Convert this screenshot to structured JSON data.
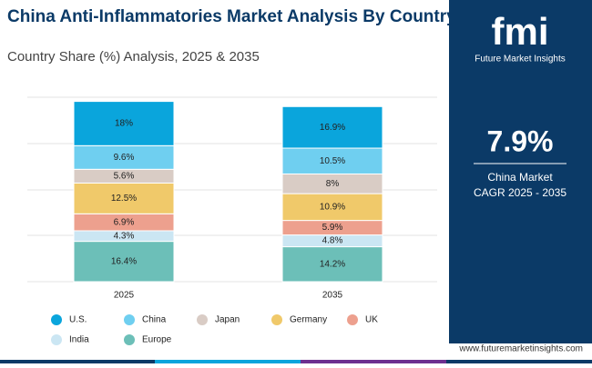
{
  "chart_data": {
    "type": "bar",
    "stacked": true,
    "title": "China Anti-Inflammatories Market Analysis By Country",
    "subtitle": "Country Share (%) Analysis, 2025 & 2035",
    "categories": [
      "2025",
      "2035"
    ],
    "ylim": [
      0,
      75
    ],
    "series": [
      {
        "name": "U.S.",
        "color": "#0aa5dc",
        "values": [
          18,
          16.9
        ],
        "value_labels": [
          "18%",
          "16.9%"
        ]
      },
      {
        "name": "China",
        "color": "#6fcff0",
        "values": [
          9.6,
          10.5
        ],
        "value_labels": [
          "9.6%",
          "10.5%"
        ]
      },
      {
        "name": "Japan",
        "color": "#d9ccc5",
        "values": [
          5.6,
          8
        ],
        "value_labels": [
          "5.6%",
          "8%"
        ]
      },
      {
        "name": "Germany",
        "color": "#f0c96a",
        "values": [
          12.5,
          10.9
        ],
        "value_labels": [
          "12.5%",
          "10.9%"
        ]
      },
      {
        "name": "UK",
        "color": "#eda08e",
        "values": [
          6.9,
          5.9
        ],
        "value_labels": [
          "6.9%",
          "5.9%"
        ]
      },
      {
        "name": "India",
        "color": "#cbe6f3",
        "values": [
          4.3,
          4.8
        ],
        "value_labels": [
          "4.3%",
          "4.8%"
        ]
      },
      {
        "name": "Europe",
        "color": "#6cbfb8",
        "values": [
          16.4,
          14.2
        ],
        "value_labels": [
          "16.4%",
          "14.2%"
        ]
      }
    ]
  },
  "sidebar": {
    "logo": "fmi",
    "brand": "Future Market Insights",
    "cagr": "7.9%",
    "cagr_line1": "China Market",
    "cagr_line2": "CAGR 2025 - 2035",
    "website": "www.futuremarketinsights.com"
  }
}
